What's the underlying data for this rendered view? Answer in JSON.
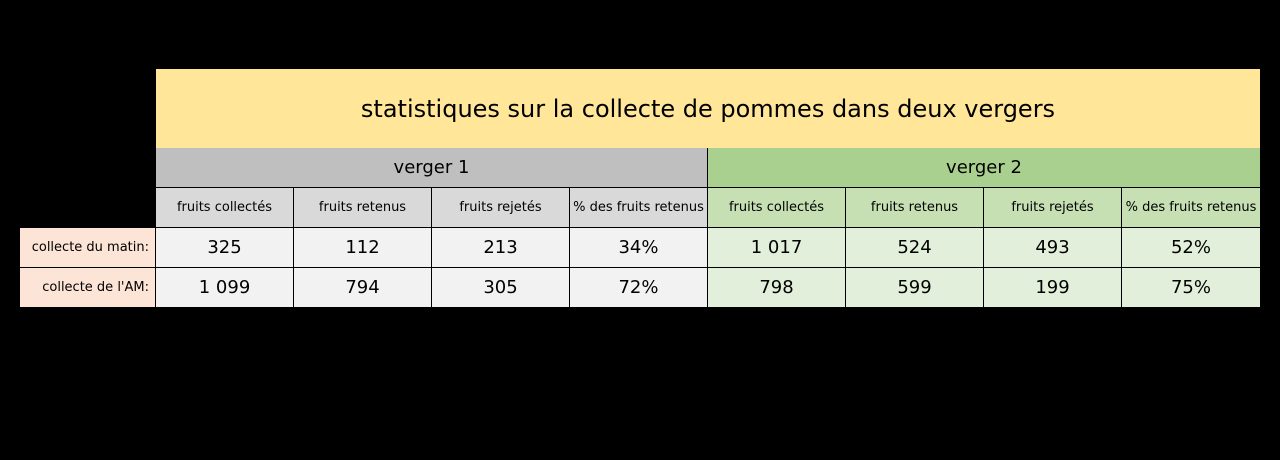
{
  "title": "statistiques sur la collecte de pommes dans deux vergers",
  "groups": [
    "verger 1",
    "verger 2"
  ],
  "column_headers": [
    "fruits collectés",
    "fruits retenus",
    "fruits rejetés",
    "% des fruits retenus"
  ],
  "rows": [
    {
      "label": "collecte du matin:",
      "verger1": [
        "325",
        "112",
        "213",
        "34%"
      ],
      "verger2": [
        "1 017",
        "524",
        "493",
        "52%"
      ]
    },
    {
      "label": "collecte de l'AM:",
      "verger1": [
        "1 099",
        "794",
        "305",
        "72%"
      ],
      "verger2": [
        "798",
        "599",
        "199",
        "75%"
      ]
    }
  ],
  "colors": {
    "title_bg": "#ffe699",
    "verger1_group_bg": "#bfbfbf",
    "verger1_header_bg": "#d9d9d9",
    "verger1_cell_bg": "#f2f2f2",
    "verger2_group_bg": "#a9d08e",
    "verger2_header_bg": "#c6e0b4",
    "verger2_cell_bg": "#e2efda",
    "row_label_bg": "#fce4d6"
  }
}
